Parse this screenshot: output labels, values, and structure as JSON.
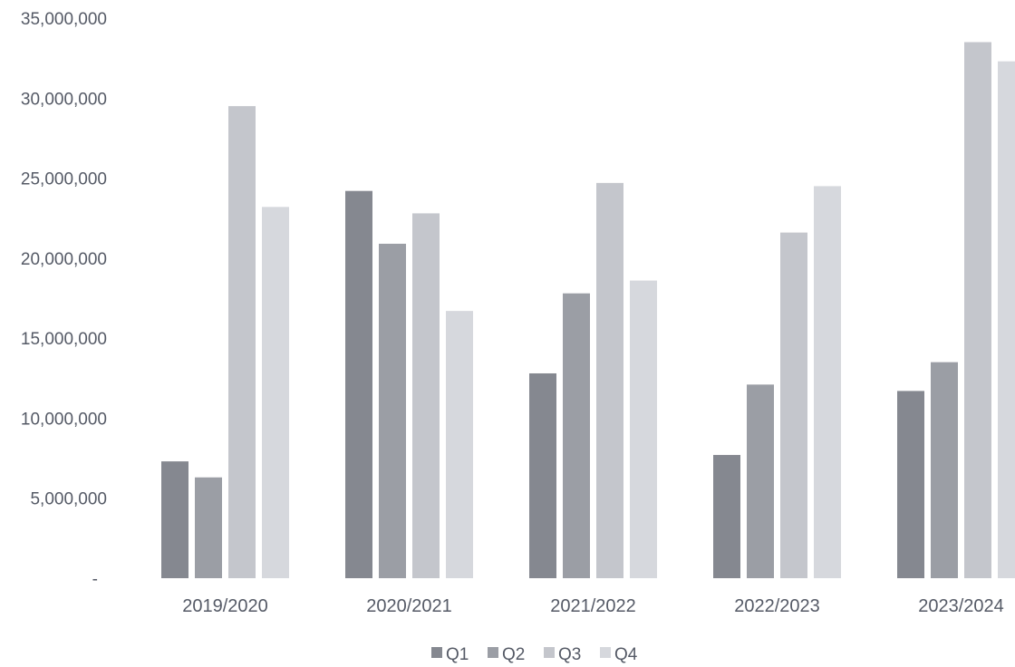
{
  "chart_data": {
    "type": "bar",
    "title": "",
    "xlabel": "",
    "ylabel": "",
    "ylim": [
      0,
      35000000
    ],
    "y_ticks": [
      {
        "value": 0,
        "label": "-"
      },
      {
        "value": 5000000,
        "label": "5,000,000"
      },
      {
        "value": 10000000,
        "label": "10,000,000"
      },
      {
        "value": 15000000,
        "label": "15,000,000"
      },
      {
        "value": 20000000,
        "label": "20,000,000"
      },
      {
        "value": 25000000,
        "label": "25,000,000"
      },
      {
        "value": 30000000,
        "label": "30,000,000"
      },
      {
        "value": 35000000,
        "label": "35,000,000"
      }
    ],
    "grid": false,
    "legend_position": "bottom",
    "categories": [
      "2019/2020",
      "2020/2021",
      "2021/2022",
      "2022/2023",
      "2023/2024"
    ],
    "series": [
      {
        "name": "Q1",
        "color": "#858890",
        "values": [
          7300000,
          24200000,
          12800000,
          7700000,
          11700000
        ]
      },
      {
        "name": "Q2",
        "color": "#9b9ea5",
        "values": [
          6300000,
          20900000,
          17800000,
          12100000,
          13500000
        ]
      },
      {
        "name": "Q3",
        "color": "#c4c6cc",
        "values": [
          29500000,
          22800000,
          24700000,
          21600000,
          33500000
        ]
      },
      {
        "name": "Q4",
        "color": "#d6d8dd",
        "values": [
          23200000,
          16700000,
          18600000,
          24500000,
          32300000
        ]
      }
    ]
  }
}
